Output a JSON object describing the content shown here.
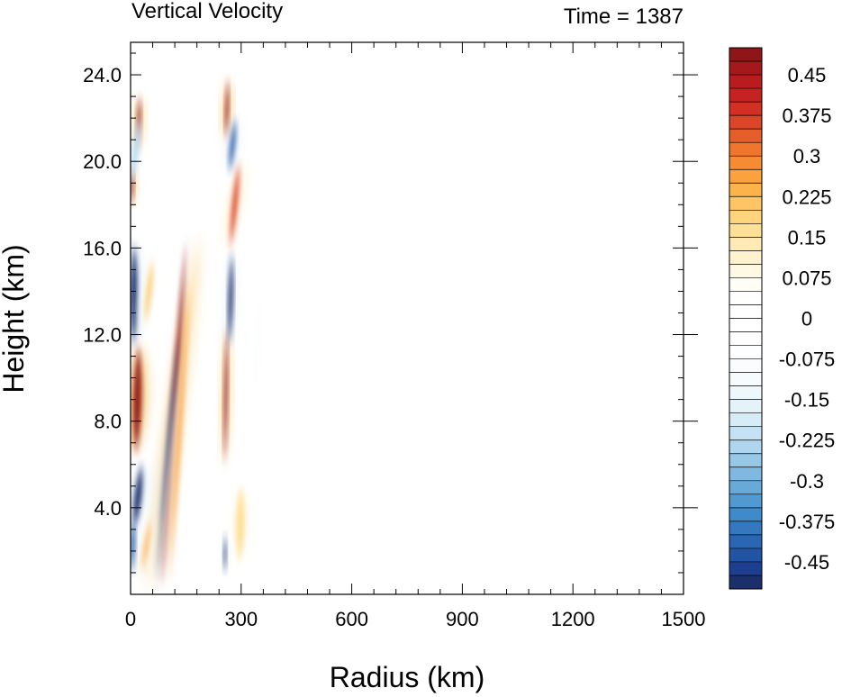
{
  "chart_data": {
    "type": "heatmap",
    "title": "Vertical Velocity",
    "subtitle": "Time = 1387",
    "xlabel": "Radius (km)",
    "ylabel": "Height (km)",
    "xlim": [
      0,
      1500
    ],
    "ylim": [
      0,
      25.5
    ],
    "x_ticks": [
      0,
      300,
      600,
      900,
      1200,
      1500
    ],
    "x_tick_labels": [
      "0",
      "300",
      "600",
      "900",
      "1200",
      "1500"
    ],
    "y_ticks": [
      4,
      8,
      12,
      16,
      20,
      24
    ],
    "y_tick_labels": [
      "4.0",
      "8.0",
      "12.0",
      "16.0",
      "20.0",
      "24.0"
    ],
    "colorbar": {
      "levels": [
        -0.5,
        -0.475,
        -0.45,
        -0.425,
        -0.4,
        -0.375,
        -0.35,
        -0.325,
        -0.3,
        -0.275,
        -0.25,
        -0.225,
        -0.2,
        -0.175,
        -0.15,
        -0.125,
        -0.1,
        -0.075,
        -0.05,
        -0.025,
        0,
        0.025,
        0.05,
        0.075,
        0.1,
        0.125,
        0.15,
        0.175,
        0.2,
        0.225,
        0.25,
        0.275,
        0.3,
        0.325,
        0.35,
        0.375,
        0.4,
        0.425,
        0.45,
        0.475,
        0.5
      ],
      "colors": [
        "#1b2f6a",
        "#1d3f8f",
        "#2353a3",
        "#2a66b3",
        "#3479bf",
        "#3f8bc9",
        "#519ad1",
        "#67a9d9",
        "#7fb9e1",
        "#97c8e8",
        "#afd6ee",
        "#c4e2f3",
        "#d6ecf7",
        "#e4f2fa",
        "#eef7fc",
        "#f6fbfd",
        "#fafcfe",
        "#fdfeff",
        "#ffffff",
        "#ffffff",
        "#ffffff",
        "#ffffff",
        "#fffdf6",
        "#fff8e3",
        "#fff2cf",
        "#ffe9b4",
        "#fee099",
        "#fed47c",
        "#fdc563",
        "#fcb34a",
        "#fba13d",
        "#f78b33",
        "#f0752d",
        "#e65e29",
        "#dc4527",
        "#d23024",
        "#c72222",
        "#b81c1e",
        "#a5181b",
        "#8e1518"
      ],
      "tick_labels": [
        "0.45",
        "0.375",
        "0.3",
        "0.225",
        "0.15",
        "0.075",
        "0",
        "-0.075",
        "-0.15",
        "-0.225",
        "-0.3",
        "-0.375",
        "-0.45"
      ],
      "tick_values": [
        0.45,
        0.375,
        0.3,
        0.225,
        0.15,
        0.075,
        0,
        -0.075,
        -0.15,
        -0.225,
        -0.3,
        -0.375,
        -0.45
      ]
    },
    "features": [
      {
        "name": "updraft-slanted-main",
        "sign": 1,
        "r0": 85,
        "r1": 150,
        "z0": 0.3,
        "z1": 16.4,
        "half_width_km": 9,
        "amplitude": 0.6
      },
      {
        "name": "downdraft-slanted-inner",
        "sign": -1,
        "r0": 70,
        "r1": 130,
        "z0": 0.5,
        "z1": 12.0,
        "half_width_km": 6,
        "amplitude": 0.5
      },
      {
        "name": "updraft-slanted-outer",
        "sign": 1,
        "r0": 105,
        "r1": 160,
        "z0": 0.5,
        "z1": 14.5,
        "half_width_km": 7,
        "amplitude": 0.25
      },
      {
        "name": "updraft-core-lower",
        "sign": 1,
        "r0": 15,
        "r1": 22,
        "z0": 6.5,
        "z1": 11.5,
        "half_width_km": 14,
        "amplitude": 0.6
      },
      {
        "name": "downdraft-core-mid",
        "sign": -1,
        "r0": 8,
        "r1": 10,
        "z0": 11.5,
        "z1": 16.2,
        "half_width_km": 12,
        "amplitude": 0.55
      },
      {
        "name": "downdraft-core-low",
        "sign": -1,
        "r0": 10,
        "r1": 30,
        "z0": 3.0,
        "z1": 6.0,
        "half_width_km": 12,
        "amplitude": 0.5
      },
      {
        "name": "downdraft-near-axis",
        "sign": -1,
        "r0": 5,
        "r1": 8,
        "z0": 1.0,
        "z1": 3.5,
        "half_width_km": 8,
        "amplitude": 0.45
      },
      {
        "name": "updraft-top-left-1",
        "sign": 1,
        "r0": 20,
        "r1": 25,
        "z0": 20.5,
        "z1": 23.0,
        "half_width_km": 7,
        "amplitude": 0.5
      },
      {
        "name": "updraft-top-left-2",
        "sign": 1,
        "r0": 3,
        "r1": 5,
        "z0": 18.0,
        "z1": 19.8,
        "half_width_km": 6,
        "amplitude": 0.5
      },
      {
        "name": "downdraft-top-left",
        "sign": -1,
        "r0": 5,
        "r1": 22,
        "z0": 19.0,
        "z1": 22.0,
        "half_width_km": 9,
        "amplitude": 0.25
      },
      {
        "name": "updraft-300-upper",
        "sign": 1,
        "r0": 258,
        "r1": 265,
        "z0": 21.0,
        "z1": 23.8,
        "half_width_km": 6,
        "amplitude": 0.6
      },
      {
        "name": "updraft-300-mid",
        "sign": 1,
        "r0": 255,
        "r1": 262,
        "z0": 6.0,
        "z1": 12.5,
        "half_width_km": 6,
        "amplitude": 0.55
      },
      {
        "name": "updraft-300-orange",
        "sign": 1,
        "r0": 270,
        "r1": 295,
        "z0": 16.0,
        "z1": 20.0,
        "half_width_km": 9,
        "amplitude": 0.35
      },
      {
        "name": "downdraft-300-upper",
        "sign": -1,
        "r0": 268,
        "r1": 285,
        "z0": 19.5,
        "z1": 22.0,
        "half_width_km": 8,
        "amplitude": 0.45
      },
      {
        "name": "downdraft-300-mid",
        "sign": -1,
        "r0": 268,
        "r1": 275,
        "z0": 11.5,
        "z1": 15.8,
        "half_width_km": 8,
        "amplitude": 0.5
      },
      {
        "name": "downdraft-300-low",
        "sign": -1,
        "r0": 255,
        "r1": 258,
        "z0": 1.0,
        "z1": 2.8,
        "half_width_km": 5,
        "amplitude": 0.5
      },
      {
        "name": "updraft-300-low",
        "sign": 1,
        "r0": 295,
        "r1": 300,
        "z0": 1.5,
        "z1": 5.0,
        "half_width_km": 16,
        "amplitude": 0.15
      },
      {
        "name": "downdraft-outer-350",
        "sign": -1,
        "r0": 340,
        "r1": 350,
        "z0": 9.0,
        "z1": 14.0,
        "half_width_km": 5,
        "amplitude": 0.12
      },
      {
        "name": "updraft-orange-mid",
        "sign": 1,
        "r0": 40,
        "r1": 60,
        "z0": 12.5,
        "z1": 15.5,
        "half_width_km": 8,
        "amplitude": 0.2
      },
      {
        "name": "updraft-orange-low",
        "sign": 1,
        "r0": 30,
        "r1": 55,
        "z0": 1.0,
        "z1": 3.5,
        "half_width_km": 6,
        "amplitude": 0.25
      }
    ]
  }
}
